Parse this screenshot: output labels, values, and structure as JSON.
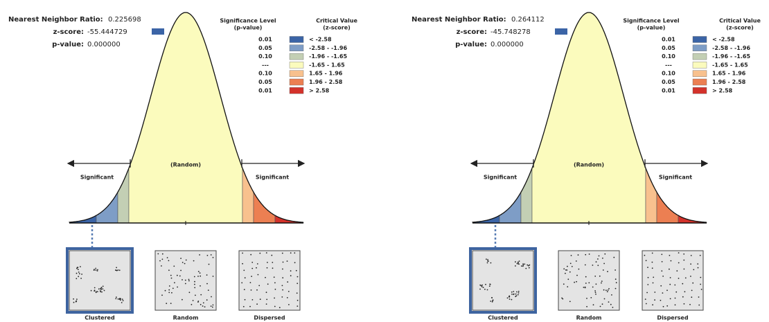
{
  "panels": [
    {
      "ratio_label": "Nearest Neighbor Ratio:",
      "ratio": "0.225698",
      "z_label": "z-score:",
      "z": "-55.444729",
      "p_label": "p-value:",
      "p": "0.000000",
      "legend": {
        "sig_header": [
          "Significance Level",
          "(p-value)"
        ],
        "crit_header": [
          "Critical Value",
          "(z-score)"
        ],
        "rows": [
          [
            "0.01",
            "< -2.58"
          ],
          [
            "0.05",
            "-2.58 - -1.96"
          ],
          [
            "0.10",
            "-1.96 - -1.65"
          ],
          [
            "---",
            "-1.65 - 1.65"
          ],
          [
            "0.10",
            "1.65 - 1.96"
          ],
          [
            "0.05",
            "1.96 - 2.58"
          ],
          [
            "0.01",
            "> 2.58"
          ]
        ]
      },
      "center_label": "(Random)",
      "left_label": "Significant",
      "right_label": "Significant",
      "patterns": [
        "Clustered",
        "Random",
        "Dispersed"
      ]
    },
    {
      "ratio_label": "Nearest Neighbor Ratio:",
      "ratio": "0.264112",
      "z_label": "z-score:",
      "z": "-45.748278",
      "p_label": "p-value:",
      "p": "0.000000",
      "legend": {
        "sig_header": [
          "Significance Level",
          "(p-value)"
        ],
        "crit_header": [
          "Critical Value",
          "(z-score)"
        ],
        "rows": [
          [
            "0.01",
            "< -2.58"
          ],
          [
            "0.05",
            "-2.58 - -1.96"
          ],
          [
            "0.10",
            "-1.96 - -1.65"
          ],
          [
            "---",
            "-1.65 - 1.65"
          ],
          [
            "0.10",
            "1.65 - 1.96"
          ],
          [
            "0.05",
            "1.96 - 2.58"
          ],
          [
            "0.01",
            "> 2.58"
          ]
        ]
      },
      "center_label": "(Random)",
      "left_label": "Significant",
      "right_label": "Significant",
      "patterns": [
        "Clustered",
        "Random",
        "Dispersed"
      ]
    }
  ]
}
